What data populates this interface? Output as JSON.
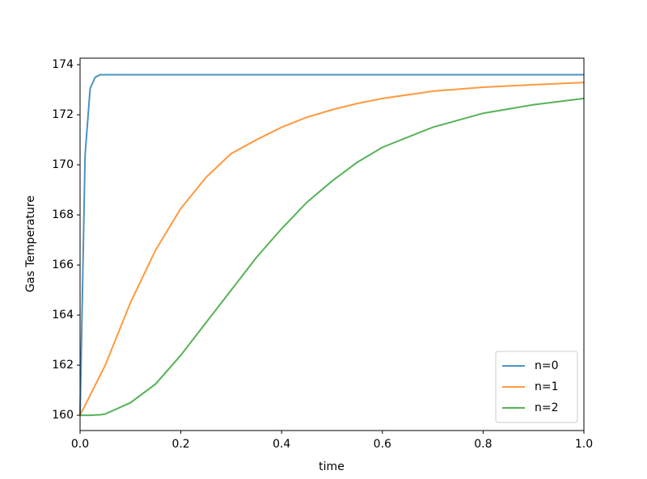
{
  "chart_data": {
    "type": "line",
    "x_label": "time",
    "y_label": "Gas Temperature",
    "x": [
      0,
      0.01,
      0.02,
      0.03,
      0.04,
      0.05,
      0.1,
      0.15,
      0.2,
      0.25,
      0.3,
      0.35,
      0.4,
      0.45,
      0.5,
      0.55,
      0.6,
      0.7,
      0.8,
      0.9,
      1.0
    ],
    "series": [
      {
        "name": "n=0",
        "color": "#1f77b4",
        "values": [
          160,
          170.4,
          173.05,
          173.5,
          173.6,
          173.6,
          173.6,
          173.6,
          173.6,
          173.6,
          173.6,
          173.6,
          173.6,
          173.6,
          173.6,
          173.6,
          173.6,
          173.6,
          173.6,
          173.6,
          173.6
        ]
      },
      {
        "name": "n=1",
        "color": "#ff7f0e",
        "values": [
          160,
          160.4,
          160.8,
          161.2,
          161.6,
          162.0,
          164.5,
          166.6,
          168.26,
          169.5,
          170.45,
          171.0,
          171.5,
          171.9,
          172.2,
          172.45,
          172.65,
          172.94,
          173.1,
          173.2,
          173.29
        ]
      },
      {
        "name": "n=2",
        "color": "#2ca02c",
        "values": [
          160,
          160,
          160,
          160.01,
          160.02,
          160.05,
          160.5,
          161.25,
          162.4,
          163.7,
          165.0,
          166.3,
          167.45,
          168.5,
          169.35,
          170.1,
          170.7,
          171.5,
          172.06,
          172.4,
          172.65
        ]
      }
    ],
    "xlim": [
      0,
      1.0
    ],
    "ylim": [
      159.39,
      174.26
    ],
    "xticks": [
      {
        "value": 0,
        "label": "0.0"
      },
      0.2,
      0.4,
      0.6,
      0.8,
      {
        "value": 1,
        "label": "1.0"
      }
    ],
    "yticks": [
      160,
      162,
      164,
      166,
      168,
      170,
      172,
      174
    ],
    "legend": "lower right",
    "grid": false
  }
}
